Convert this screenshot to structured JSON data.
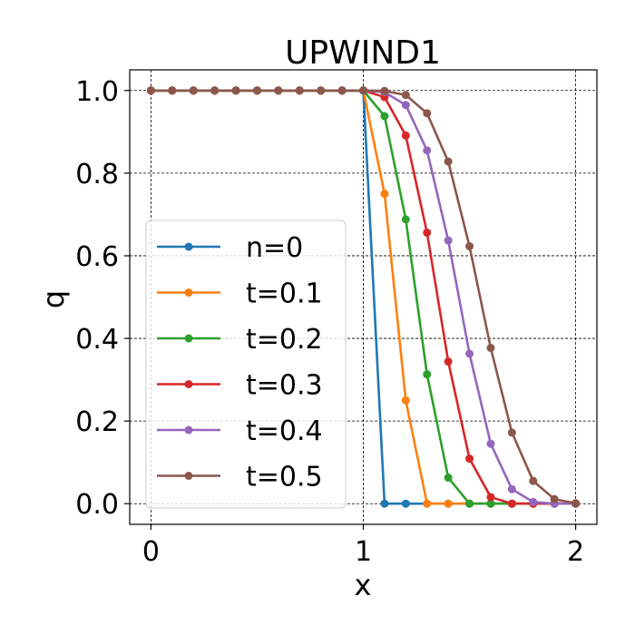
{
  "chart_data": {
    "type": "line",
    "title": "UPWIND1",
    "xlabel": "x",
    "ylabel": "q",
    "xlim": [
      -0.1,
      2.1
    ],
    "ylim": [
      -0.05,
      1.05
    ],
    "xticks": [
      0,
      1,
      2
    ],
    "xtick_labels": [
      "0",
      "1",
      "2"
    ],
    "yticks": [
      0.0,
      0.2,
      0.4,
      0.6,
      0.8,
      1.0
    ],
    "ytick_labels": [
      "0.0",
      "0.2",
      "0.4",
      "0.6",
      "0.8",
      "1.0"
    ],
    "grid": true,
    "legend_position": "center-left",
    "x": [
      0.0,
      0.1,
      0.2,
      0.3,
      0.4,
      0.5,
      0.6,
      0.7,
      0.8,
      0.9,
      1.0,
      1.1,
      1.2,
      1.3,
      1.4,
      1.5,
      1.6,
      1.7,
      1.8,
      1.9,
      2.0
    ],
    "series": [
      {
        "name": "n=0",
        "color": "#1f77b4",
        "values": [
          1,
          1,
          1,
          1,
          1,
          1,
          1,
          1,
          1,
          1,
          1,
          0,
          0,
          0,
          0,
          0,
          0,
          0,
          0,
          0,
          0
        ]
      },
      {
        "name": "t=0.1",
        "color": "#ff7f0e",
        "values": [
          1,
          1,
          1,
          1,
          1,
          1,
          1,
          1,
          1,
          1,
          1,
          0.75,
          0.25,
          0,
          0,
          0,
          0,
          0,
          0,
          0,
          0
        ]
      },
      {
        "name": "t=0.2",
        "color": "#2ca02c",
        "values": [
          1,
          1,
          1,
          1,
          1,
          1,
          1,
          1,
          1,
          1,
          1,
          0.938,
          0.688,
          0.313,
          0.063,
          0,
          0,
          0,
          0,
          0,
          0
        ]
      },
      {
        "name": "t=0.3",
        "color": "#d62728",
        "values": [
          1,
          1,
          1,
          1,
          1,
          1,
          1,
          1,
          1,
          1,
          1,
          0.984,
          0.891,
          0.656,
          0.344,
          0.109,
          0.016,
          0,
          0,
          0,
          0
        ]
      },
      {
        "name": "t=0.4",
        "color": "#9467bd",
        "values": [
          1,
          1,
          1,
          1,
          1,
          1,
          1,
          1,
          1,
          1,
          1,
          0.996,
          0.965,
          0.855,
          0.637,
          0.363,
          0.145,
          0.035,
          0.004,
          0,
          0
        ]
      },
      {
        "name": "t=0.5",
        "color": "#8c564b",
        "values": [
          1,
          1,
          1,
          1,
          1,
          1,
          1,
          1,
          1,
          1,
          1,
          0.999,
          0.989,
          0.945,
          0.828,
          0.623,
          0.377,
          0.172,
          0.055,
          0.011,
          0.001
        ]
      }
    ]
  }
}
